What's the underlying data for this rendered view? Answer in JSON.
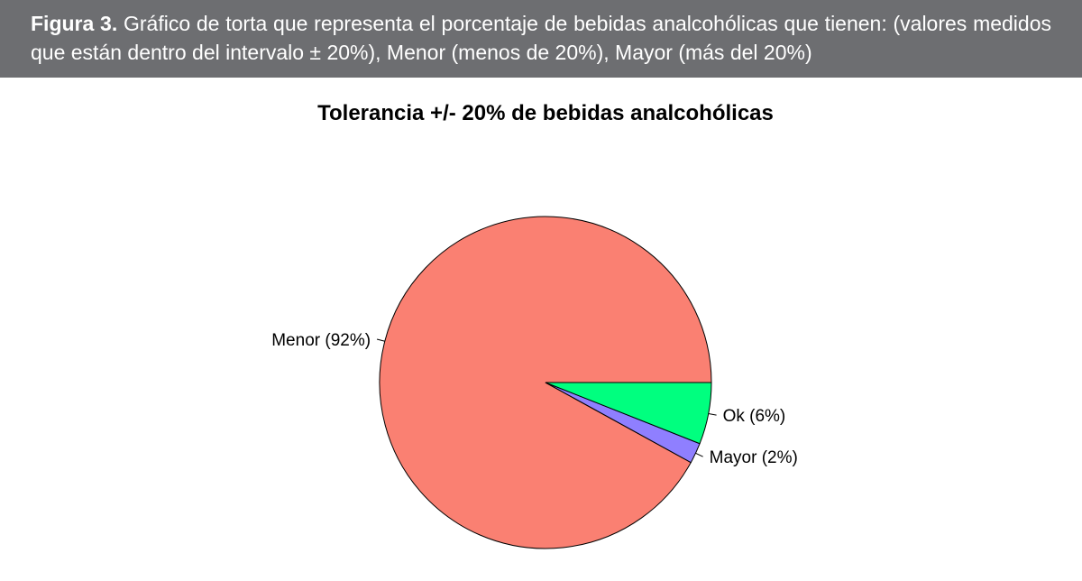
{
  "caption": {
    "label": "Figura 3.",
    "text": " Gráfico de torta que representa el porcentaje de bebidas analcohólicas que tienen: (valores medidos que están dentro del intervalo ± 20%), Menor (menos de 20%), Mayor (más del 20%)"
  },
  "chart_data": {
    "type": "pie",
    "title": "Tolerancia +/- 20% de bebidas analcohólicas",
    "slices": [
      {
        "label": "Menor (92%)",
        "value": 92,
        "color": "#fa8072"
      },
      {
        "label": "Mayor (2%)",
        "value": 2,
        "color": "#8f7fff"
      },
      {
        "label": "Ok (6%)",
        "value": 6,
        "color": "#00ff7f"
      }
    ]
  }
}
